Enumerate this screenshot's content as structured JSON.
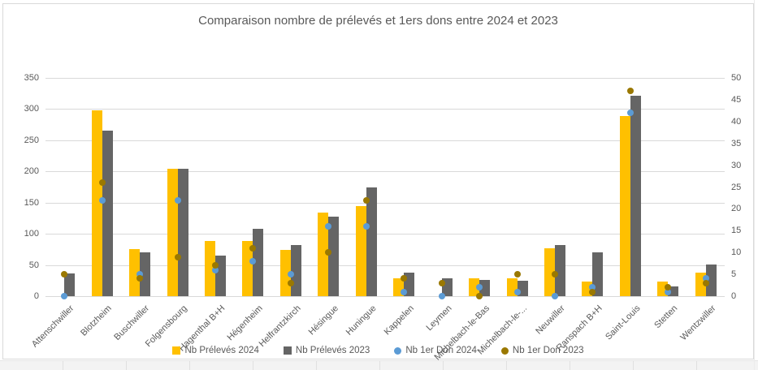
{
  "chart_data": {
    "type": "bar",
    "title": "Comparaison nombre de prélevés et 1ers dons entre 2024 et 2023",
    "xlabel": "",
    "ylabel": "",
    "grid": true,
    "legend_position": "bottom",
    "left_axis": {
      "min": 0,
      "max": 350,
      "step": 50
    },
    "right_axis": {
      "min": 0,
      "max": 50,
      "step": 5
    },
    "categories": [
      "Attenschwiller",
      "Blotzheim",
      "Buschwiller",
      "Folgensbourg",
      "Hagenthal B+H",
      "Hégenheim",
      "Helfrantzkirch",
      "Hésingue",
      "Huningue",
      "Kappelen",
      "Leymen",
      "Michelbach-le-Bas",
      "Michelbach-le-...",
      "Neuwiller",
      "Ranspach B+H",
      "Saint-Louis",
      "Stetten",
      "Wentzwiller"
    ],
    "series": [
      {
        "name": "Nb Prélevés 2024",
        "type": "bar",
        "axis": "left",
        "color": "#FFC000",
        "values": [
          0,
          298,
          76,
          204,
          88,
          89,
          74,
          134,
          145,
          29,
          0,
          28,
          28,
          77,
          23,
          289,
          23,
          38
        ]
      },
      {
        "name": "Nb Prélevés 2023",
        "type": "bar",
        "axis": "left",
        "color": "#656565",
        "values": [
          37,
          266,
          70,
          204,
          65,
          108,
          82,
          127,
          175,
          38,
          29,
          26,
          25,
          82,
          70,
          322,
          15,
          51
        ]
      },
      {
        "name": "Nb 1er Don 2024",
        "type": "point",
        "axis": "right",
        "color": "#5B9BD5",
        "values": [
          0,
          22,
          5,
          22,
          6,
          8,
          5,
          16,
          16,
          1,
          0,
          2,
          1,
          0,
          2,
          42,
          1,
          4
        ]
      },
      {
        "name": "Nb 1er Don 2023",
        "type": "point",
        "axis": "right",
        "color": "#9A7800",
        "values": [
          5,
          26,
          4,
          9,
          7,
          11,
          3,
          10,
          22,
          4,
          3,
          0,
          5,
          5,
          1,
          47,
          2,
          3
        ]
      }
    ],
    "colors": {
      "gridline": "#d9d9d9",
      "axis_text": "#595959",
      "title_text": "#595959"
    }
  }
}
